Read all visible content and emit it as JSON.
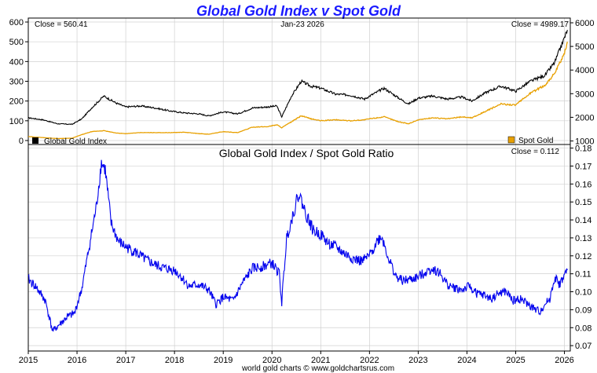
{
  "colors": {
    "gold_index": "#000000",
    "spot_gold": "#e8a000",
    "ratio": "#0000ee",
    "title": "#1a1aff",
    "grid": "#d0d0d0"
  },
  "footer": "world gold charts © www.goldchartsrus.com",
  "chart_data": [
    {
      "type": "line",
      "title": "Global Gold Index v Spot Gold",
      "date_label": "Jan-23  2026",
      "left_close_label": "Close = 560.41",
      "right_close_label": "Close = 4989.17",
      "left_axis": {
        "ticks": [
          0,
          100,
          200,
          300,
          400,
          500,
          600
        ],
        "ylim": [
          -20,
          620
        ]
      },
      "right_axis": {
        "ticks": [
          1000,
          2000,
          3000,
          4000,
          5000,
          6000
        ],
        "ylim": [
          850,
          6200
        ]
      },
      "legend": {
        "left": "Global Gold Index",
        "right": "Spot Gold"
      },
      "x": [
        2015.0,
        2015.3,
        2015.6,
        2015.9,
        2016.1,
        2016.3,
        2016.55,
        2016.8,
        2017.0,
        2017.3,
        2017.6,
        2017.9,
        2018.2,
        2018.5,
        2018.7,
        2019.0,
        2019.3,
        2019.6,
        2019.9,
        2020.1,
        2020.2,
        2020.4,
        2020.6,
        2020.8,
        2021.0,
        2021.3,
        2021.6,
        2021.9,
        2022.0,
        2022.3,
        2022.6,
        2022.8,
        2023.0,
        2023.3,
        2023.6,
        2023.9,
        2024.1,
        2024.4,
        2024.7,
        2025.0,
        2025.3,
        2025.6,
        2025.8,
        2026.0,
        2026.06
      ],
      "series": [
        {
          "name": "Global Gold Index",
          "axis": "left",
          "values": [
            115,
            105,
            85,
            82,
            110,
            165,
            225,
            190,
            170,
            175,
            165,
            150,
            140,
            135,
            125,
            145,
            135,
            165,
            170,
            175,
            120,
            225,
            300,
            275,
            265,
            235,
            230,
            210,
            225,
            265,
            215,
            185,
            215,
            225,
            210,
            220,
            200,
            245,
            275,
            250,
            300,
            330,
            395,
            520,
            560
          ]
        },
        {
          "name": "Spot Gold",
          "axis": "left",
          "values": [
            20,
            15,
            10,
            12,
            30,
            45,
            50,
            38,
            35,
            40,
            40,
            40,
            42,
            35,
            32,
            45,
            40,
            68,
            70,
            80,
            65,
            95,
            125,
            110,
            100,
            105,
            100,
            105,
            110,
            120,
            95,
            85,
            105,
            115,
            110,
            120,
            115,
            150,
            185,
            180,
            240,
            280,
            340,
            440,
            500
          ]
        }
      ]
    },
    {
      "type": "line",
      "title": "Global Gold Index  /  Spot Gold Ratio",
      "close_label": "Close = 0.112",
      "y_ticks": [
        0.07,
        0.08,
        0.09,
        0.1,
        0.11,
        0.12,
        0.13,
        0.14,
        0.15,
        0.16,
        0.17,
        0.18
      ],
      "ylim": [
        0.067,
        0.182
      ],
      "x_ticks": [
        "2015",
        "2016",
        "2017",
        "2018",
        "2019",
        "2020",
        "2021",
        "2022",
        "2023",
        "2024",
        "2025",
        "2026"
      ],
      "xlim": [
        2015.0,
        2026.12
      ],
      "series": [
        {
          "name": "Ratio",
          "x": [
            2015.0,
            2015.15,
            2015.35,
            2015.5,
            2015.65,
            2015.8,
            2015.95,
            2016.1,
            2016.25,
            2016.4,
            2016.5,
            2016.58,
            2016.7,
            2016.85,
            2017.0,
            2017.2,
            2017.4,
            2017.6,
            2017.8,
            2018.0,
            2018.15,
            2018.3,
            2018.5,
            2018.7,
            2018.85,
            2019.0,
            2019.2,
            2019.4,
            2019.6,
            2019.8,
            2020.0,
            2020.15,
            2020.2,
            2020.3,
            2020.4,
            2020.55,
            2020.7,
            2020.85,
            2021.0,
            2021.15,
            2021.3,
            2021.5,
            2021.7,
            2021.85,
            2022.0,
            2022.15,
            2022.25,
            2022.4,
            2022.55,
            2022.7,
            2022.85,
            2023.0,
            2023.15,
            2023.3,
            2023.45,
            2023.6,
            2023.75,
            2023.9,
            2024.05,
            2024.2,
            2024.35,
            2024.5,
            2024.65,
            2024.8,
            2024.95,
            2025.1,
            2025.25,
            2025.4,
            2025.5,
            2025.6,
            2025.7,
            2025.8,
            2025.9,
            2026.0,
            2026.06
          ],
          "values": [
            0.107,
            0.103,
            0.095,
            0.078,
            0.082,
            0.086,
            0.088,
            0.102,
            0.125,
            0.148,
            0.172,
            0.168,
            0.138,
            0.128,
            0.125,
            0.122,
            0.118,
            0.115,
            0.113,
            0.112,
            0.108,
            0.103,
            0.104,
            0.101,
            0.093,
            0.097,
            0.095,
            0.105,
            0.113,
            0.114,
            0.116,
            0.11,
            0.094,
            0.13,
            0.14,
            0.155,
            0.143,
            0.134,
            0.132,
            0.127,
            0.125,
            0.121,
            0.118,
            0.117,
            0.12,
            0.128,
            0.131,
            0.118,
            0.108,
            0.106,
            0.107,
            0.108,
            0.111,
            0.113,
            0.11,
            0.104,
            0.102,
            0.101,
            0.103,
            0.099,
            0.098,
            0.096,
            0.099,
            0.1,
            0.095,
            0.096,
            0.093,
            0.09,
            0.089,
            0.093,
            0.096,
            0.108,
            0.104,
            0.109,
            0.112
          ]
        }
      ]
    }
  ]
}
